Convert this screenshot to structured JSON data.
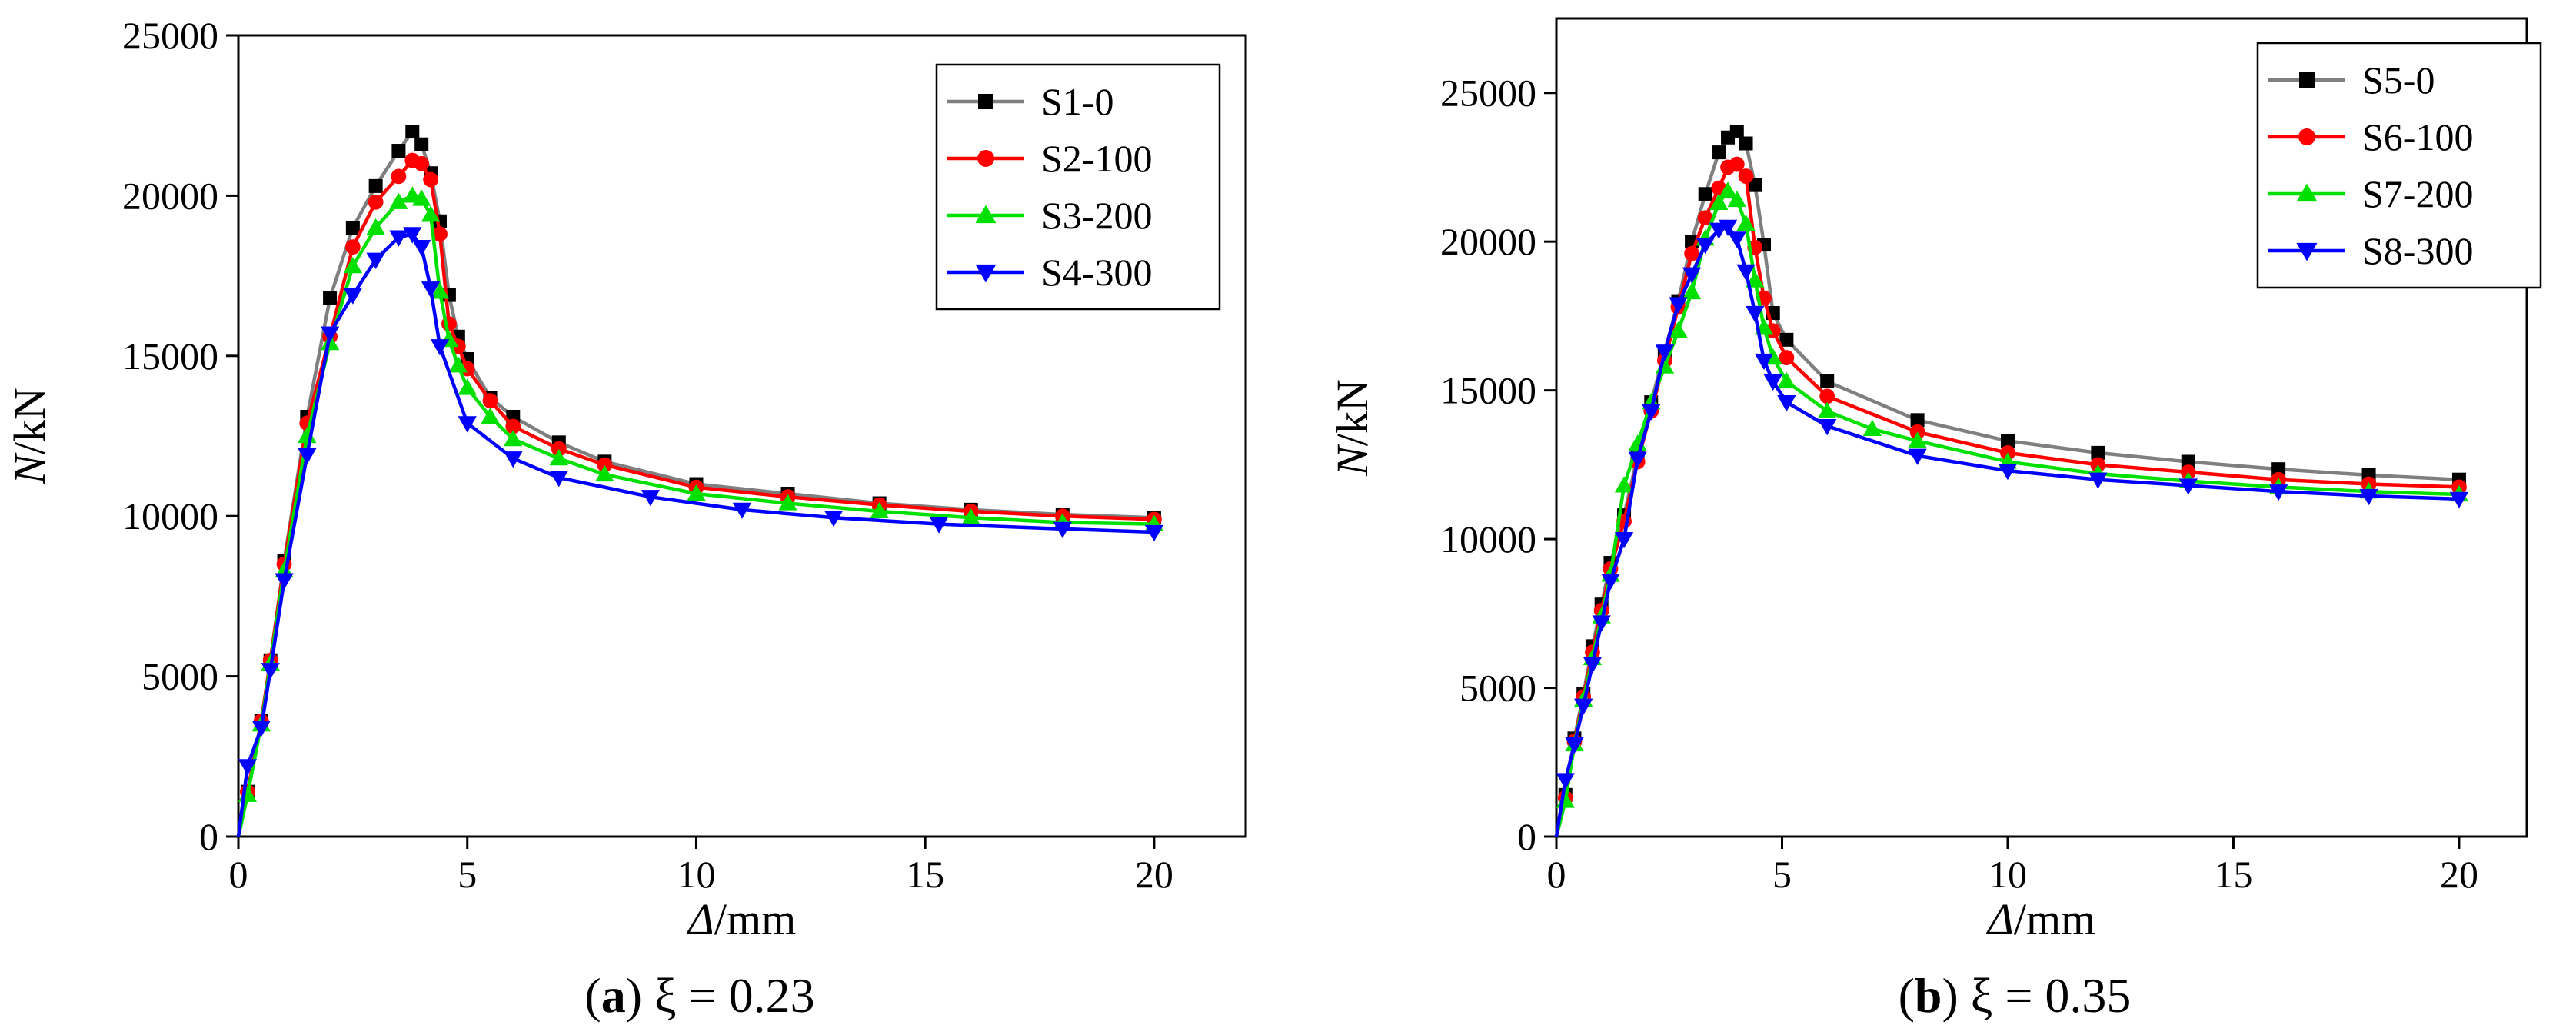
{
  "chart_data": [
    {
      "type": "line",
      "caption": {
        "letter": "a",
        "text": " ξ = 0.23"
      },
      "xlabel": {
        "symbol": "Δ",
        "unit": "/mm"
      },
      "ylabel": {
        "symbol": "N",
        "unit": "/kN"
      },
      "xlim": [
        0,
        22
      ],
      "ylim": [
        0,
        25000
      ],
      "xticks": [
        0,
        5,
        10,
        15,
        20
      ],
      "yticks": [
        0,
        5000,
        10000,
        15000,
        20000,
        25000
      ],
      "legend": "top-right",
      "grid": false,
      "series": [
        {
          "name": "S1-0",
          "color": "#7f7f7f",
          "marker": "square",
          "x": [
            0,
            0.2,
            0.5,
            0.7,
            1,
            1.5,
            2,
            2.5,
            3,
            3.5,
            3.8,
            4,
            4.2,
            4.4,
            4.6,
            4.8,
            5,
            5.5,
            6,
            7,
            8,
            10,
            12,
            14,
            16,
            18,
            20
          ],
          "y": [
            0,
            1400,
            3600,
            5500,
            8600,
            13100,
            16800,
            19000,
            20300,
            21400,
            22000,
            21600,
            20700,
            19200,
            16900,
            15600,
            14900,
            13700,
            13100,
            12300,
            11700,
            11000,
            10700,
            10400,
            10200,
            10050,
            9950
          ]
        },
        {
          "name": "S2-100",
          "color": "#ff0000",
          "marker": "circle",
          "x": [
            0,
            0.2,
            0.5,
            0.7,
            1,
            1.5,
            2,
            2.5,
            3,
            3.5,
            3.8,
            4,
            4.2,
            4.4,
            4.6,
            4.8,
            5,
            5.5,
            6,
            7,
            8,
            10,
            12,
            14,
            16,
            18,
            20
          ],
          "y": [
            0,
            1400,
            3600,
            5500,
            8500,
            12900,
            15600,
            18400,
            19800,
            20600,
            21100,
            21000,
            20500,
            18800,
            16000,
            15300,
            14600,
            13600,
            12800,
            12100,
            11600,
            10900,
            10600,
            10350,
            10150,
            10000,
            9900
          ]
        },
        {
          "name": "S3-200",
          "color": "#00e000",
          "marker": "triangle-up",
          "x": [
            0,
            0.2,
            0.5,
            0.7,
            1,
            1.5,
            2,
            2.5,
            3,
            3.5,
            3.8,
            4,
            4.2,
            4.4,
            4.6,
            4.8,
            5,
            5.5,
            6,
            7,
            8,
            10,
            12,
            14,
            16,
            18,
            20
          ],
          "y": [
            0,
            1300,
            3500,
            5400,
            8300,
            12500,
            15400,
            17800,
            19000,
            19800,
            20000,
            19900,
            19400,
            17000,
            15500,
            14700,
            14000,
            13100,
            12400,
            11800,
            11300,
            10700,
            10400,
            10150,
            9950,
            9800,
            9750
          ]
        },
        {
          "name": "S4-300",
          "color": "#0000ff",
          "marker": "triangle-down",
          "x": [
            0,
            0.2,
            0.5,
            0.7,
            1,
            1.5,
            2,
            2.5,
            3,
            3.5,
            3.8,
            4,
            4.2,
            4.4,
            5,
            6,
            7,
            9,
            11,
            13,
            15.3,
            18,
            20
          ],
          "y": [
            0,
            2200,
            3400,
            5200,
            8000,
            11900,
            15700,
            16900,
            18000,
            18700,
            18800,
            18400,
            17100,
            15300,
            12900,
            11800,
            11200,
            10600,
            10200,
            9950,
            9750,
            9600,
            9500
          ]
        }
      ]
    },
    {
      "type": "line",
      "caption": {
        "letter": "b",
        "text": " ξ = 0.35"
      },
      "xlabel": {
        "symbol": "Δ",
        "unit": "/mm"
      },
      "ylabel": {
        "symbol": "N",
        "unit": "/kN"
      },
      "xlim": [
        0,
        21.5
      ],
      "ylim": [
        0,
        27500
      ],
      "xticks": [
        0,
        5,
        10,
        15,
        20
      ],
      "yticks": [
        0,
        5000,
        10000,
        15000,
        20000,
        25000
      ],
      "legend": "top-right",
      "grid": false,
      "series": [
        {
          "name": "S5-0",
          "color": "#7f7f7f",
          "marker": "square",
          "x": [
            0,
            0.2,
            0.4,
            0.6,
            0.8,
            1,
            1.2,
            1.5,
            1.8,
            2.1,
            2.4,
            2.7,
            3,
            3.3,
            3.6,
            3.8,
            4,
            4.2,
            4.4,
            4.6,
            4.8,
            5.1,
            6,
            8,
            10,
            12,
            14,
            16,
            18,
            20
          ],
          "y": [
            0,
            1400,
            3300,
            4800,
            6400,
            7800,
            9200,
            10800,
            12800,
            14600,
            16300,
            18000,
            20000,
            21600,
            23000,
            23500,
            23700,
            23300,
            21900,
            19900,
            17600,
            16700,
            15300,
            14000,
            13300,
            12900,
            12600,
            12350,
            12150,
            12000
          ]
        },
        {
          "name": "S6-100",
          "color": "#ff0000",
          "marker": "circle",
          "x": [
            0,
            0.2,
            0.4,
            0.6,
            0.8,
            1,
            1.2,
            1.5,
            1.8,
            2.1,
            2.4,
            2.7,
            3,
            3.3,
            3.6,
            3.8,
            4,
            4.2,
            4.4,
            4.6,
            4.8,
            5.1,
            6,
            8,
            10,
            12,
            14,
            16,
            18,
            20
          ],
          "y": [
            0,
            1300,
            3200,
            4700,
            6200,
            7600,
            9000,
            10600,
            12600,
            14300,
            16000,
            17800,
            19600,
            20800,
            21800,
            22500,
            22600,
            22200,
            19800,
            18100,
            17000,
            16100,
            14800,
            13600,
            12900,
            12500,
            12250,
            12000,
            11850,
            11750
          ]
        },
        {
          "name": "S7-200",
          "color": "#00e000",
          "marker": "triangle-up",
          "x": [
            0,
            0.2,
            0.4,
            0.6,
            0.8,
            1,
            1.2,
            1.5,
            1.8,
            2.1,
            2.4,
            2.7,
            3,
            3.3,
            3.6,
            3.8,
            4,
            4.2,
            4.4,
            4.6,
            4.8,
            5.1,
            6,
            7,
            8,
            10,
            12,
            14,
            16,
            18,
            20
          ],
          "y": [
            0,
            1200,
            3100,
            4600,
            6000,
            7400,
            8800,
            11800,
            13200,
            14600,
            15800,
            17000,
            18300,
            20100,
            21300,
            21700,
            21400,
            20600,
            18700,
            17100,
            16100,
            15300,
            14300,
            13700,
            13300,
            12600,
            12200,
            11950,
            11750,
            11600,
            11500
          ]
        },
        {
          "name": "S8-300",
          "color": "#0000ff",
          "marker": "triangle-down",
          "x": [
            0,
            0.2,
            0.4,
            0.6,
            0.8,
            1,
            1.2,
            1.5,
            1.8,
            2.1,
            2.4,
            2.7,
            3,
            3.3,
            3.6,
            3.8,
            4,
            4.2,
            4.4,
            4.6,
            4.8,
            5.1,
            6,
            8,
            10,
            12,
            14,
            16,
            18,
            20
          ],
          "y": [
            0,
            1900,
            3100,
            4400,
            5800,
            7200,
            8600,
            10000,
            12700,
            14300,
            16300,
            17900,
            18900,
            19900,
            20400,
            20500,
            20100,
            19000,
            17600,
            16000,
            15300,
            14600,
            13800,
            12800,
            12300,
            12000,
            11800,
            11600,
            11450,
            11350
          ]
        }
      ]
    }
  ]
}
